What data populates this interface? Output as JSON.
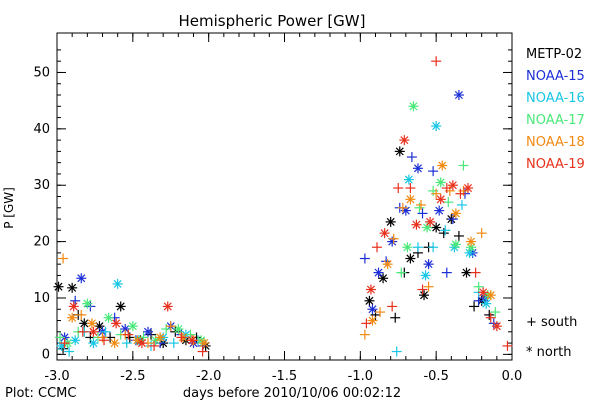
{
  "chart_data": {
    "type": "scatter",
    "title": "Hemispheric Power [GW]",
    "xlabel": "days before 2010/10/06 00:02:12",
    "ylabel": "P [GW]",
    "xlim": [
      -3.0,
      0.0
    ],
    "ylim": [
      -1,
      57
    ],
    "x_ticks": [
      -3.0,
      -2.5,
      -2.0,
      -1.5,
      -1.0,
      -0.5,
      0.0
    ],
    "x_tick_labels": [
      "-3.0",
      "-2.5",
      "-2.0",
      "-1.5",
      "-1.0",
      "-0.5",
      "0.0"
    ],
    "y_ticks": [
      0,
      10,
      20,
      30,
      40,
      50
    ],
    "y_tick_labels": [
      "0",
      "10",
      "20",
      "30",
      "40",
      "50"
    ],
    "grid": false,
    "legend_position": "right-outside",
    "hemisphere_key": [
      {
        "label": "+ south",
        "marker": "plus"
      },
      {
        "label": "* north",
        "marker": "asterisk"
      }
    ],
    "series": [
      {
        "name": "METP-02",
        "color": "#000000",
        "points": [
          [
            -2.99,
            12.0,
            "n"
          ],
          [
            -2.96,
            1.0,
            "s"
          ],
          [
            -2.9,
            11.8,
            "n"
          ],
          [
            -2.86,
            7.0,
            "s"
          ],
          [
            -2.82,
            5.5,
            "n"
          ],
          [
            -2.78,
            3.0,
            "s"
          ],
          [
            -2.72,
            5.0,
            "n"
          ],
          [
            -2.65,
            3.0,
            "s"
          ],
          [
            -2.58,
            8.5,
            "n"
          ],
          [
            -2.52,
            3.0,
            "s"
          ],
          [
            -2.45,
            2.5,
            "n"
          ],
          [
            -2.38,
            3.5,
            "s"
          ],
          [
            -2.3,
            2.0,
            "n"
          ],
          [
            -2.22,
            4.0,
            "s"
          ],
          [
            -2.15,
            2.5,
            "n"
          ],
          [
            -2.08,
            3.0,
            "s"
          ],
          [
            -2.02,
            1.5,
            "n"
          ],
          [
            -0.94,
            9.5,
            "n"
          ],
          [
            -0.9,
            7.0,
            "s"
          ],
          [
            -0.85,
            13.5,
            "n"
          ],
          [
            -0.8,
            23.5,
            "n"
          ],
          [
            -0.77,
            6.5,
            "s"
          ],
          [
            -0.74,
            36.0,
            "n"
          ],
          [
            -0.71,
            14.5,
            "s"
          ],
          [
            -0.67,
            17.0,
            "n"
          ],
          [
            -0.62,
            18.0,
            "s"
          ],
          [
            -0.58,
            10.5,
            "n"
          ],
          [
            -0.55,
            19.0,
            "s"
          ],
          [
            -0.5,
            22.5,
            "n"
          ],
          [
            -0.45,
            21.5,
            "s"
          ],
          [
            -0.4,
            24.0,
            "n"
          ],
          [
            -0.35,
            21.0,
            "s"
          ],
          [
            -0.3,
            14.5,
            "n"
          ],
          [
            -0.25,
            8.5,
            "s"
          ],
          [
            -0.2,
            9.5,
            "n"
          ],
          [
            -0.15,
            7.0,
            "s"
          ]
        ]
      },
      {
        "name": "NOAA-15",
        "color": "#1c2fd6",
        "points": [
          [
            -2.95,
            3.0,
            "n"
          ],
          [
            -2.88,
            9.5,
            "s"
          ],
          [
            -2.84,
            13.5,
            "n"
          ],
          [
            -2.78,
            8.5,
            "s"
          ],
          [
            -2.7,
            4.0,
            "n"
          ],
          [
            -2.62,
            6.5,
            "s"
          ],
          [
            -2.55,
            4.5,
            "n"
          ],
          [
            -2.48,
            2.5,
            "s"
          ],
          [
            -2.4,
            4.0,
            "n"
          ],
          [
            -2.32,
            2.0,
            "s"
          ],
          [
            -2.25,
            5.0,
            "n"
          ],
          [
            -2.18,
            3.5,
            "s"
          ],
          [
            -2.1,
            2.0,
            "n"
          ],
          [
            -2.04,
            1.5,
            "s"
          ],
          [
            -0.97,
            17.0,
            "s"
          ],
          [
            -0.92,
            8.0,
            "n"
          ],
          [
            -0.88,
            14.5,
            "n"
          ],
          [
            -0.83,
            16.5,
            "s"
          ],
          [
            -0.79,
            20.0,
            "n"
          ],
          [
            -0.74,
            26.0,
            "s"
          ],
          [
            -0.7,
            25.5,
            "n"
          ],
          [
            -0.66,
            35.0,
            "s"
          ],
          [
            -0.62,
            33.0,
            "n"
          ],
          [
            -0.59,
            25.0,
            "s"
          ],
          [
            -0.55,
            16.0,
            "n"
          ],
          [
            -0.52,
            32.5,
            "s"
          ],
          [
            -0.48,
            25.5,
            "n"
          ],
          [
            -0.43,
            14.5,
            "s"
          ],
          [
            -0.39,
            24.0,
            "s"
          ],
          [
            -0.35,
            46.0,
            "n"
          ],
          [
            -0.31,
            28.5,
            "s"
          ],
          [
            -0.26,
            18.0,
            "n"
          ],
          [
            -0.22,
            9.5,
            "s"
          ],
          [
            -0.18,
            10.0,
            "n"
          ],
          [
            -0.12,
            5.5,
            "s"
          ]
        ]
      },
      {
        "name": "NOAA-16",
        "color": "#18c6e6",
        "points": [
          [
            -2.97,
            1.5,
            "n"
          ],
          [
            -2.92,
            0.5,
            "s"
          ],
          [
            -2.88,
            2.5,
            "n"
          ],
          [
            -2.82,
            4.0,
            "s"
          ],
          [
            -2.76,
            2.0,
            "n"
          ],
          [
            -2.68,
            4.0,
            "s"
          ],
          [
            -2.6,
            12.5,
            "n"
          ],
          [
            -2.54,
            2.0,
            "s"
          ],
          [
            -2.46,
            2.5,
            "n"
          ],
          [
            -2.38,
            1.5,
            "s"
          ],
          [
            -2.3,
            3.0,
            "n"
          ],
          [
            -2.23,
            2.0,
            "s"
          ],
          [
            -2.15,
            3.5,
            "n"
          ],
          [
            -2.07,
            2.5,
            "s"
          ],
          [
            -0.76,
            0.5,
            "s"
          ],
          [
            -0.68,
            31.0,
            "n"
          ],
          [
            -0.62,
            19.0,
            "s"
          ],
          [
            -0.57,
            14.0,
            "n"
          ],
          [
            -0.52,
            19.0,
            "s"
          ],
          [
            -0.5,
            40.5,
            "n"
          ],
          [
            -0.44,
            22.0,
            "s"
          ],
          [
            -0.38,
            19.0,
            "n"
          ],
          [
            -0.33,
            26.5,
            "s"
          ],
          [
            -0.28,
            18.0,
            "n"
          ],
          [
            -0.22,
            11.0,
            "s"
          ],
          [
            -0.17,
            9.0,
            "n"
          ]
        ]
      },
      {
        "name": "NOAA-17",
        "color": "#49e878",
        "points": [
          [
            -2.98,
            3.0,
            "s"
          ],
          [
            -2.93,
            2.0,
            "n"
          ],
          [
            -2.86,
            4.0,
            "s"
          ],
          [
            -2.8,
            9.0,
            "n"
          ],
          [
            -2.73,
            3.0,
            "s"
          ],
          [
            -2.66,
            6.5,
            "n"
          ],
          [
            -2.58,
            3.5,
            "s"
          ],
          [
            -2.5,
            5.0,
            "n"
          ],
          [
            -2.43,
            3.0,
            "s"
          ],
          [
            -2.35,
            2.5,
            "n"
          ],
          [
            -2.28,
            4.5,
            "s"
          ],
          [
            -2.2,
            4.5,
            "n"
          ],
          [
            -2.12,
            3.5,
            "s"
          ],
          [
            -2.05,
            2.5,
            "n"
          ],
          [
            -0.73,
            14.5,
            "s"
          ],
          [
            -0.69,
            19.0,
            "n"
          ],
          [
            -0.65,
            44.0,
            "n"
          ],
          [
            -0.61,
            26.0,
            "s"
          ],
          [
            -0.56,
            22.5,
            "n"
          ],
          [
            -0.52,
            29.0,
            "s"
          ],
          [
            -0.47,
            30.5,
            "n"
          ],
          [
            -0.42,
            27.0,
            "s"
          ],
          [
            -0.37,
            19.5,
            "n"
          ],
          [
            -0.32,
            33.5,
            "s"
          ],
          [
            -0.27,
            19.0,
            "n"
          ],
          [
            -0.22,
            12.0,
            "s"
          ],
          [
            -0.16,
            10.5,
            "n"
          ],
          [
            -0.11,
            7.5,
            "s"
          ]
        ]
      },
      {
        "name": "NOAA-18",
        "color": "#f28a12",
        "points": [
          [
            -2.96,
            17.0,
            "s"
          ],
          [
            -2.9,
            6.5,
            "n"
          ],
          [
            -2.84,
            7.0,
            "s"
          ],
          [
            -2.77,
            5.5,
            "n"
          ],
          [
            -2.7,
            3.0,
            "s"
          ],
          [
            -2.62,
            2.0,
            "n"
          ],
          [
            -2.55,
            3.5,
            "s"
          ],
          [
            -2.47,
            2.5,
            "n"
          ],
          [
            -2.4,
            2.0,
            "s"
          ],
          [
            -2.32,
            3.0,
            "n"
          ],
          [
            -2.25,
            5.0,
            "s"
          ],
          [
            -2.17,
            3.0,
            "n"
          ],
          [
            -2.1,
            2.5,
            "s"
          ],
          [
            -2.03,
            2.0,
            "n"
          ],
          [
            -0.97,
            3.5,
            "s"
          ],
          [
            -0.92,
            6.0,
            "n"
          ],
          [
            -0.87,
            7.5,
            "s"
          ],
          [
            -0.82,
            16.0,
            "n"
          ],
          [
            -0.78,
            20.5,
            "s"
          ],
          [
            -0.72,
            26.0,
            "s"
          ],
          [
            -0.67,
            27.5,
            "n"
          ],
          [
            -0.6,
            26.5,
            "s"
          ],
          [
            -0.55,
            12.0,
            "s"
          ],
          [
            -0.5,
            28.5,
            "s"
          ],
          [
            -0.46,
            33.5,
            "n"
          ],
          [
            -0.41,
            29.0,
            "s"
          ],
          [
            -0.37,
            25.0,
            "n"
          ],
          [
            -0.32,
            29.0,
            "s"
          ],
          [
            -0.27,
            20.0,
            "n"
          ],
          [
            -0.2,
            21.5,
            "s"
          ],
          [
            -0.14,
            10.5,
            "n"
          ]
        ]
      },
      {
        "name": "NOAA-19",
        "color": "#e8301c",
        "points": [
          [
            -2.95,
            2.0,
            "s"
          ],
          [
            -2.89,
            8.5,
            "n"
          ],
          [
            -2.83,
            4.0,
            "s"
          ],
          [
            -2.76,
            4.0,
            "n"
          ],
          [
            -2.69,
            2.5,
            "s"
          ],
          [
            -2.61,
            5.5,
            "n"
          ],
          [
            -2.53,
            3.5,
            "s"
          ],
          [
            -2.44,
            2.0,
            "n"
          ],
          [
            -2.36,
            1.5,
            "s"
          ],
          [
            -2.27,
            8.5,
            "n"
          ],
          [
            -2.18,
            3.0,
            "s"
          ],
          [
            -2.11,
            2.5,
            "n"
          ],
          [
            -2.04,
            0.5,
            "s"
          ],
          [
            -0.96,
            5.5,
            "s"
          ],
          [
            -0.93,
            11.5,
            "n"
          ],
          [
            -0.89,
            19.0,
            "s"
          ],
          [
            -0.84,
            21.5,
            "n"
          ],
          [
            -0.79,
            8.5,
            "s"
          ],
          [
            -0.75,
            29.5,
            "s"
          ],
          [
            -0.71,
            38.0,
            "n"
          ],
          [
            -0.67,
            29.5,
            "s"
          ],
          [
            -0.63,
            23.0,
            "n"
          ],
          [
            -0.59,
            11.5,
            "s"
          ],
          [
            -0.54,
            23.5,
            "n"
          ],
          [
            -0.5,
            52.0,
            "s"
          ],
          [
            -0.47,
            27.5,
            "n"
          ],
          [
            -0.43,
            29.5,
            "s"
          ],
          [
            -0.39,
            30.0,
            "n"
          ],
          [
            -0.34,
            28.5,
            "s"
          ],
          [
            -0.29,
            29.5,
            "n"
          ],
          [
            -0.24,
            14.5,
            "s"
          ],
          [
            -0.19,
            11.0,
            "n"
          ],
          [
            -0.14,
            6.5,
            "s"
          ],
          [
            -0.1,
            5.0,
            "n"
          ],
          [
            -0.03,
            1.5,
            "s"
          ]
        ]
      }
    ]
  },
  "credit": "Plot: CCMC"
}
